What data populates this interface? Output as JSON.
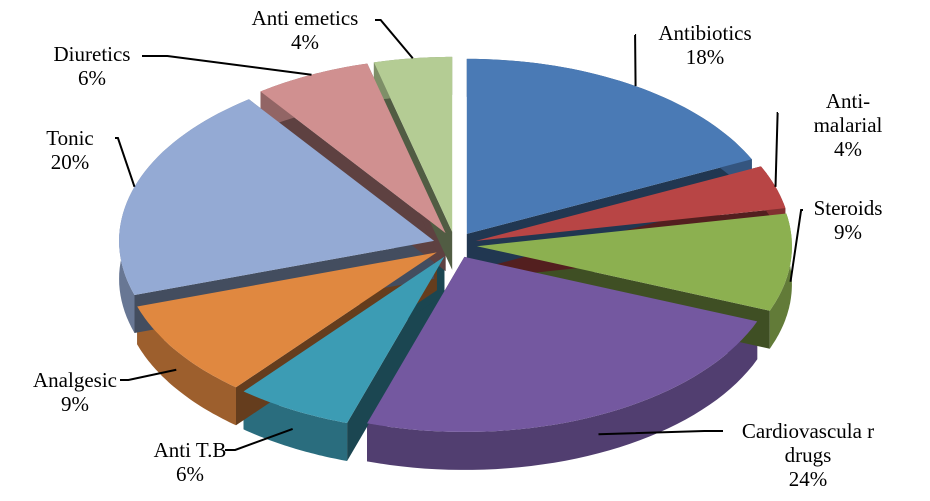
{
  "chart_data": {
    "type": "pie",
    "categories": [
      "Antibiotics",
      "Anti-malarial",
      "Steroids",
      "Cardiovascula r drugs",
      "Anti T.B",
      "Analgesic",
      "Tonic",
      "Diuretics",
      "Anti emetics"
    ],
    "values": [
      18,
      4,
      9,
      24,
      6,
      9,
      20,
      6,
      4
    ],
    "value_labels": [
      "18%",
      "4%",
      "9%",
      "24%",
      "6%",
      "9%",
      "20%",
      "6%",
      "4%"
    ],
    "colors": [
      "#4a7ab5",
      "#b84545",
      "#8cb050",
      "#7458a0",
      "#3c9cb4",
      "#e08840",
      "#94aad4",
      "#d09090",
      "#b4cc94"
    ]
  }
}
